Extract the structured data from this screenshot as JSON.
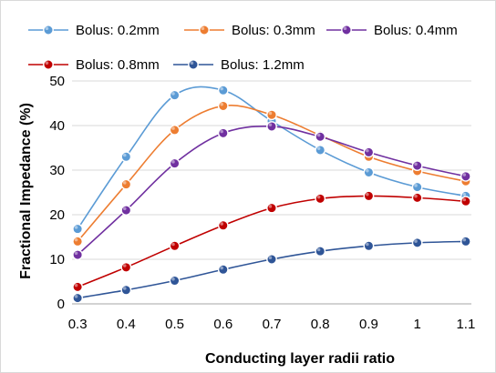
{
  "chart_data": {
    "type": "line",
    "smooth": true,
    "title": "",
    "xlabel": "Conducting layer radii ratio",
    "ylabel": "Fractional Impedance (%)",
    "x": [
      0.3,
      0.4,
      0.5,
      0.6,
      0.7,
      0.8,
      0.9,
      1,
      1.1
    ],
    "x_tick_labels": [
      "0.3",
      "0.4",
      "0.5",
      "0.6",
      "0.7",
      "0.8",
      "0.9",
      "1",
      "1.1"
    ],
    "ylim": [
      0,
      50
    ],
    "y_ticks": [
      0,
      10,
      20,
      30,
      40,
      50
    ],
    "y_tick_labels": [
      "0",
      "10",
      "20",
      "30",
      "40",
      "50"
    ],
    "grid": "horizontal",
    "legend_position": "top",
    "series": [
      {
        "name": "Bolus: 0.2mm",
        "color": "#5b9bd5",
        "values": [
          16.8,
          33.0,
          46.8,
          47.9,
          41.0,
          34.5,
          29.5,
          26.2,
          24.2
        ]
      },
      {
        "name": "Bolus: 0.3mm",
        "color": "#ed7d31",
        "values": [
          14.0,
          26.8,
          39.0,
          44.4,
          42.4,
          37.8,
          33.0,
          29.8,
          27.5
        ]
      },
      {
        "name": "Bolus: 0.4mm",
        "color": "#7030a0",
        "values": [
          11.0,
          21.0,
          31.5,
          38.3,
          39.8,
          37.5,
          34.0,
          31.0,
          28.6
        ]
      },
      {
        "name": "Bolus: 0.8mm",
        "color": "#c00000",
        "values": [
          3.8,
          8.2,
          13.0,
          17.6,
          21.5,
          23.6,
          24.2,
          23.8,
          23.0
        ]
      },
      {
        "name": "Bolus: 1.2mm",
        "color": "#2f5597",
        "values": [
          1.3,
          3.1,
          5.2,
          7.7,
          10.0,
          11.8,
          13.0,
          13.7,
          14.0
        ]
      }
    ]
  }
}
